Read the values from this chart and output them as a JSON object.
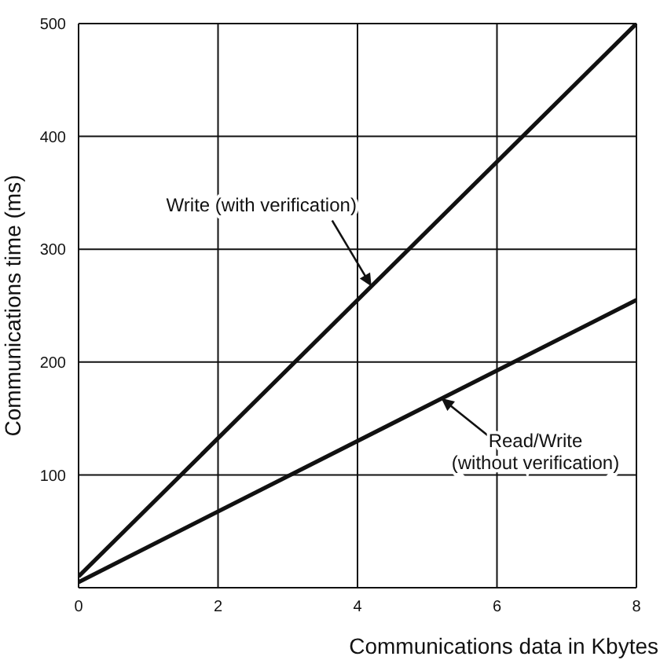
{
  "chart_data": {
    "type": "line",
    "xlabel": "Communications data in Kbytes",
    "ylabel": "Communications time (ms)",
    "xlim": [
      0,
      8
    ],
    "ylim": [
      0,
      500
    ],
    "xticks": [
      0,
      2,
      4,
      6,
      8
    ],
    "yticks": [
      {
        "value": 0,
        "label": null
      },
      100,
      200,
      300,
      400,
      500
    ],
    "grid": true,
    "marker": "none",
    "line_style": "solid",
    "x": [
      0,
      8
    ],
    "series": [
      {
        "color": "#111111",
        "values": [
          10,
          500
        ]
      },
      {
        "color": "#111111",
        "values": [
          5,
          255
        ]
      }
    ],
    "annotations": [
      {
        "text": "Write (with verification)",
        "x": 4.2,
        "y": 267
      },
      {
        "text": "Read/Write (without verification)",
        "x": 5.2,
        "y": 168
      }
    ]
  }
}
